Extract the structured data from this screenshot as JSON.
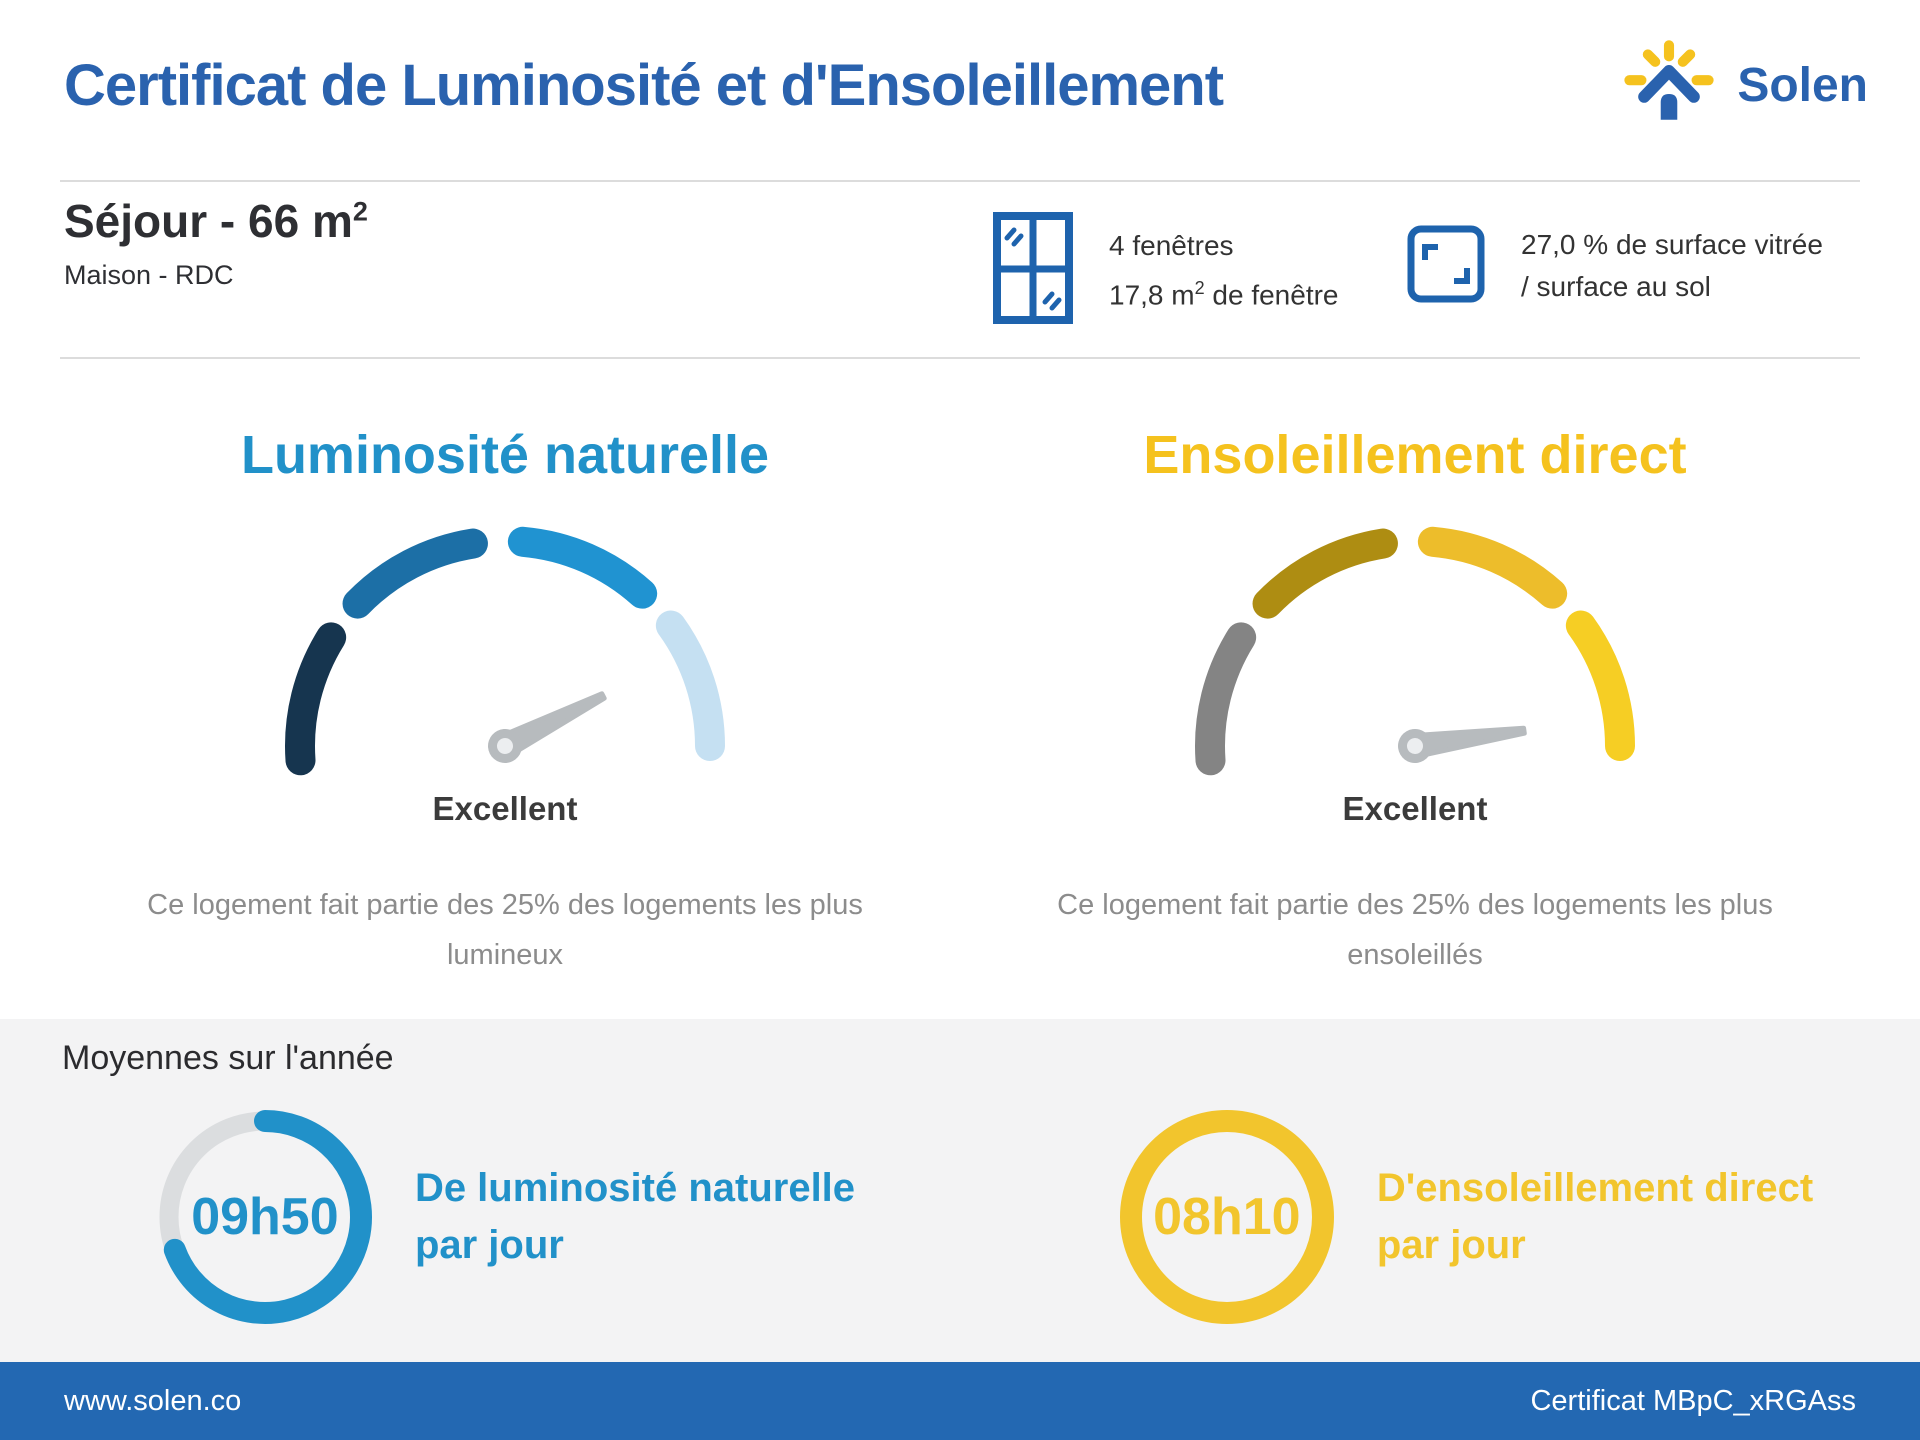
{
  "colors": {
    "brand_blue": "#2A62AE",
    "accent_cyan": "#2191C9",
    "accent_gold": "#F5C21E",
    "ring_gold": "#F2C52D",
    "footer_blue": "#2368B2",
    "needle": "#B7BBBE",
    "needle_hub_inner": "#ECEEF0",
    "ring_track": "#DBDDDF",
    "band_background": "#F3F3F4",
    "dark_text": "#2E2F33",
    "gray_text": "#8C8C8C"
  },
  "header": {
    "title": "Certificat de Luminosité et d'Ensoleillement",
    "brand": "Solen"
  },
  "room": {
    "name": "Séjour - 66 m",
    "area_sup": "2",
    "subtitle": "Maison - RDC"
  },
  "windows": {
    "line1": "4 fenêtres",
    "line2_pre": "17,8 m",
    "line2_sup": "2",
    "line2_post": " de fenêtre"
  },
  "glazing": {
    "line1": "27,0 % de surface vitrée",
    "line2": "/ surface au sol"
  },
  "gauges": [
    {
      "title": "Luminosité naturelle",
      "rating": "Excellent",
      "desc_line1": "Ce logement fait partie des 25% des logements les plus",
      "desc_line2": "lumineux",
      "segment_colors": [
        "#16354F",
        "#1C6FA6",
        "#2093D1",
        "#C5E0F2"
      ],
      "segments": [
        [
          184,
          148
        ],
        [
          136,
          99
        ],
        [
          85,
          48
        ],
        [
          36,
          0
        ]
      ],
      "needle_angle_deg": 27
    },
    {
      "title": "Ensoleillement direct",
      "rating": "Excellent",
      "desc_line1": "Ce logement fait partie des 25% des logements les plus",
      "desc_line2": "ensoleillés",
      "segment_colors": [
        "#848484",
        "#AE8D12",
        "#EDBD2B",
        "#F6CE24"
      ],
      "segments": [
        [
          184,
          148
        ],
        [
          136,
          99
        ],
        [
          85,
          48
        ],
        [
          36,
          0
        ]
      ],
      "needle_angle_deg": 8
    }
  ],
  "averages": {
    "heading": "Moyennes sur l'année",
    "items": [
      {
        "value": "09h50",
        "caption_line1": "De luminosité naturelle",
        "caption_line2": "par jour",
        "color": "#2191C9",
        "sweep_deg": 250
      },
      {
        "value": "08h10",
        "caption_line1": "D'ensoleillement direct",
        "caption_line2": "par jour",
        "color": "#F2C52D",
        "sweep_deg": 360
      }
    ]
  },
  "footer": {
    "left": "www.solen.co",
    "right": "Certificat MBpC_xRGAss"
  },
  "chart_data": [
    {
      "type": "gauge",
      "title": "Luminosité naturelle",
      "rating": "Excellent",
      "note": "Ce logement fait partie des 25% des logements les plus lumineux",
      "segments_total": 4,
      "segment_colors": [
        "#16354F",
        "#1C6FA6",
        "#2093D1",
        "#C5E0F2"
      ],
      "needle_segment": 4,
      "needle_angle_above_horizontal_deg": 27,
      "arc_span_deg": 184
    },
    {
      "type": "gauge",
      "title": "Ensoleillement direct",
      "rating": "Excellent",
      "note": "Ce logement fait partie des 25% des logements les plus ensoleillés",
      "segments_total": 4,
      "segment_colors": [
        "#848484",
        "#AE8D12",
        "#EDBD2B",
        "#F6CE24"
      ],
      "needle_segment": 4,
      "needle_angle_above_horizontal_deg": 8,
      "arc_span_deg": 184
    },
    {
      "type": "donut",
      "title": "De luminosité naturelle par jour",
      "value": "09h50",
      "value_hours": 9.83,
      "fill_fraction": 0.69,
      "color": "#2191C9"
    },
    {
      "type": "donut",
      "title": "D'ensoleillement direct par jour",
      "value": "08h10",
      "value_hours": 8.17,
      "fill_fraction": 1.0,
      "color": "#F2C52D"
    }
  ]
}
